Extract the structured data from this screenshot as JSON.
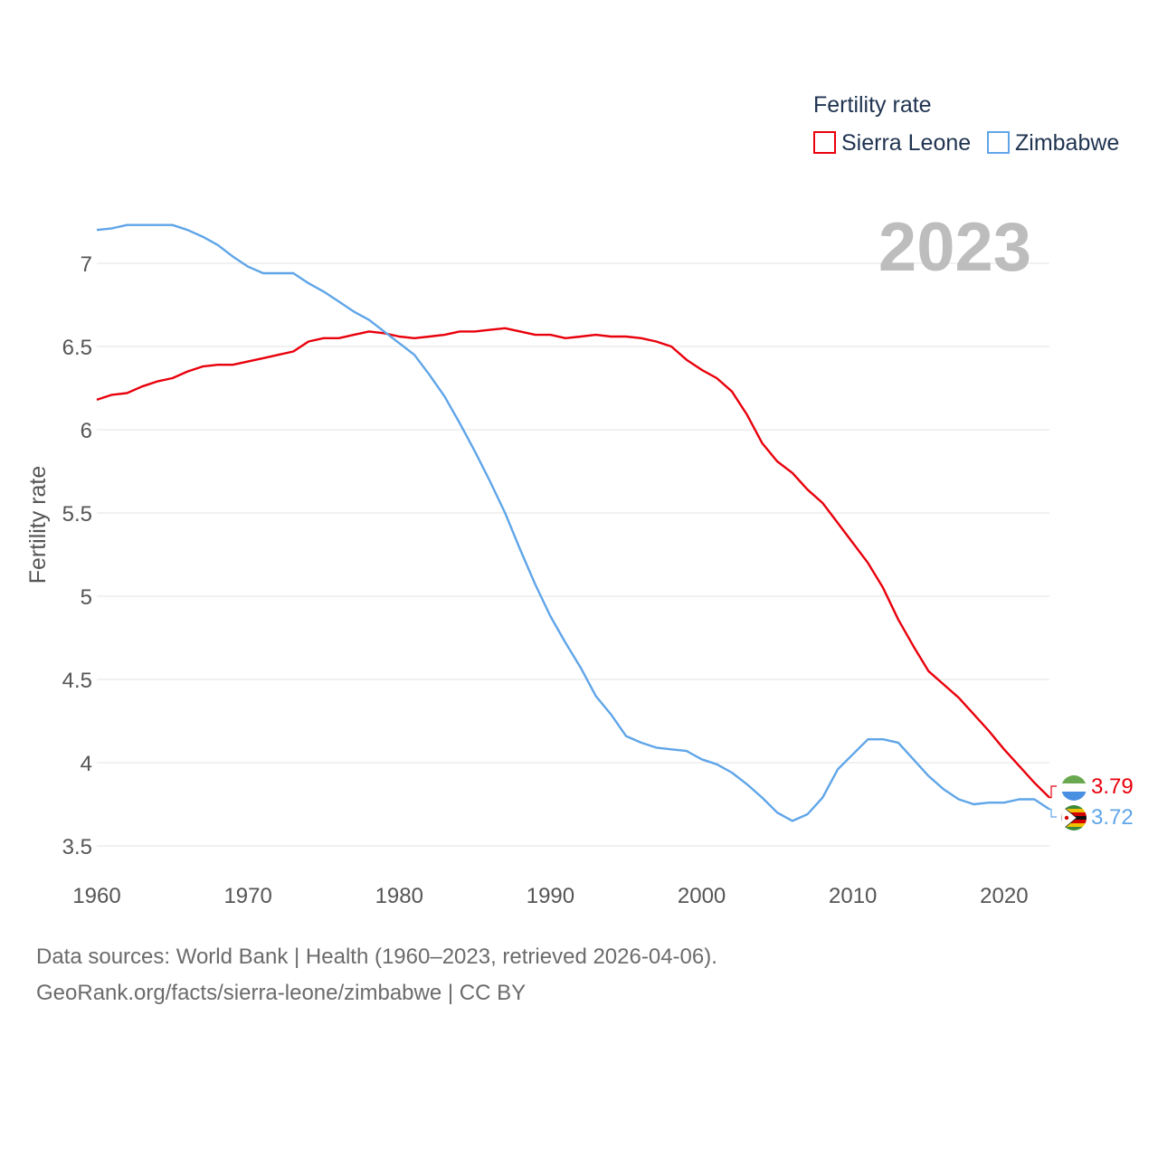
{
  "chart_data": {
    "type": "line",
    "title": "Fertility rate",
    "ylabel": "Fertility rate",
    "xlabel": "",
    "year_label": "2023",
    "xlim": [
      1960,
      2023
    ],
    "ylim": [
      3.5,
      7.2
    ],
    "x_ticks": [
      1960,
      1970,
      1980,
      1990,
      2000,
      2010,
      2020
    ],
    "y_ticks": [
      3.5,
      4,
      4.5,
      5,
      5.5,
      6,
      6.5,
      7
    ],
    "grid": true,
    "legend_position": "top-right",
    "x": [
      1960,
      1961,
      1962,
      1963,
      1964,
      1965,
      1966,
      1967,
      1968,
      1969,
      1970,
      1971,
      1972,
      1973,
      1974,
      1975,
      1976,
      1977,
      1978,
      1979,
      1980,
      1981,
      1982,
      1983,
      1984,
      1985,
      1986,
      1987,
      1988,
      1989,
      1990,
      1991,
      1992,
      1993,
      1994,
      1995,
      1996,
      1997,
      1998,
      1999,
      2000,
      2001,
      2002,
      2003,
      2004,
      2005,
      2006,
      2007,
      2008,
      2009,
      2010,
      2011,
      2012,
      2013,
      2014,
      2015,
      2016,
      2017,
      2018,
      2019,
      2020,
      2021,
      2022,
      2023
    ],
    "series": [
      {
        "name": "Sierra Leone",
        "color": "#e8000b",
        "end_value_label": "3.79",
        "values": [
          6.18,
          6.21,
          6.22,
          6.26,
          6.29,
          6.31,
          6.35,
          6.38,
          6.39,
          6.39,
          6.41,
          6.43,
          6.45,
          6.47,
          6.53,
          6.55,
          6.55,
          6.57,
          6.59,
          6.58,
          6.56,
          6.55,
          6.56,
          6.57,
          6.59,
          6.59,
          6.6,
          6.61,
          6.59,
          6.57,
          6.57,
          6.55,
          6.56,
          6.57,
          6.56,
          6.56,
          6.55,
          6.53,
          6.5,
          6.42,
          6.36,
          6.31,
          6.23,
          6.09,
          5.92,
          5.81,
          5.74,
          5.64,
          5.56,
          5.44,
          5.32,
          5.2,
          5.05,
          4.86,
          4.7,
          4.55,
          4.47,
          4.39,
          4.29,
          4.19,
          4.08,
          3.98,
          3.88,
          3.79
        ]
      },
      {
        "name": "Zimbabwe",
        "color": "#5fa5e8",
        "end_value_label": "3.72",
        "values": [
          7.2,
          7.21,
          7.23,
          7.23,
          7.23,
          7.23,
          7.2,
          7.16,
          7.11,
          7.04,
          6.98,
          6.94,
          6.94,
          6.94,
          6.88,
          6.83,
          6.77,
          6.71,
          6.66,
          6.59,
          6.52,
          6.45,
          6.33,
          6.2,
          6.04,
          5.87,
          5.69,
          5.5,
          5.28,
          5.07,
          4.88,
          4.72,
          4.57,
          4.4,
          4.29,
          4.16,
          4.12,
          4.09,
          4.08,
          4.07,
          4.02,
          3.99,
          3.94,
          3.87,
          3.79,
          3.7,
          3.65,
          3.69,
          3.79,
          3.96,
          4.05,
          4.14,
          4.14,
          4.12,
          4.02,
          3.92,
          3.84,
          3.78,
          3.75,
          3.76,
          3.76,
          3.78,
          3.78,
          3.72
        ]
      }
    ]
  },
  "footer": {
    "line1": "Data sources: World Bank | Health (1960–2023, retrieved 2026-04-06).",
    "line2": "GeoRank.org/facts/sierra-leone/zimbabwe | CC BY"
  }
}
